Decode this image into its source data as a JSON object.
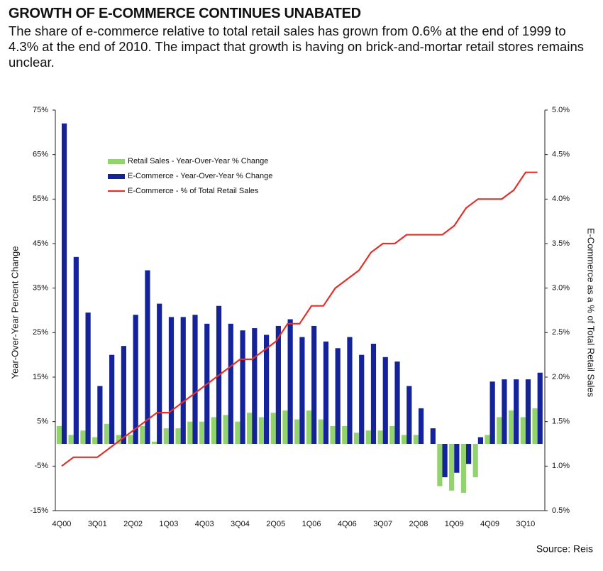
{
  "chart_data": {
    "type": "bar-line",
    "title": "GROWTH OF E-COMMERCE CONTINUES UNABATED",
    "subtitle": "The share of e-commerce relative to total retail sales has grown from 0.6% at the end of 1999 to 4.3% at the end of 2010. The impact that growth is having on brick-and-mortar retail stores remains unclear.",
    "y_label": "Year-Over-Year Percent Change",
    "y2_label": "E-Commerce as a % of Total Retail Sales",
    "source": "Source: Reis",
    "categories": [
      "4Q00",
      null,
      null,
      "3Q01",
      null,
      null,
      "2Q02",
      null,
      null,
      "1Q03",
      null,
      null,
      "4Q03",
      null,
      null,
      "3Q04",
      null,
      null,
      "2Q05",
      null,
      null,
      "1Q06",
      null,
      null,
      "4Q06",
      null,
      null,
      "3Q07",
      null,
      null,
      "2Q08",
      null,
      null,
      "1Q09",
      null,
      null,
      "4Q09",
      null,
      null,
      "3Q10",
      null
    ],
    "series": [
      {
        "name": "Retail Sales - Year-Over-Year % Change",
        "type": "bar",
        "color": "#92d36e",
        "values": [
          4,
          2,
          3,
          1.5,
          4.5,
          2,
          2,
          4,
          0.5,
          3.5,
          3.5,
          5,
          5,
          6,
          6.5,
          5,
          7,
          6,
          7,
          7.5,
          5.5,
          7.5,
          5.5,
          4,
          4,
          2.5,
          3,
          3,
          4,
          2,
          2,
          0,
          -9.5,
          -10.5,
          -11,
          -7.5,
          2,
          6,
          7.5,
          6,
          8
        ]
      },
      {
        "name": "E-Commerce - Year-Over-Year % Change",
        "type": "bar",
        "color": "#15239a",
        "values": [
          72,
          42,
          29.5,
          13,
          20,
          22,
          29,
          39,
          31.5,
          28.5,
          28.5,
          29,
          27,
          31,
          27,
          25.5,
          26,
          24.5,
          26.5,
          28,
          24,
          26.5,
          23,
          21.5,
          24,
          20,
          22.5,
          19.5,
          18.5,
          13,
          8,
          3.5,
          -7.5,
          -6.5,
          -4.5,
          1.5,
          14,
          14.5,
          14.5,
          14.5,
          16
        ]
      },
      {
        "name": "E-Commerce - % of Total Retail Sales",
        "type": "line",
        "axis": "y2",
        "color": "#e2302a",
        "values": [
          1.0,
          1.1,
          1.1,
          1.1,
          1.2,
          1.3,
          1.4,
          1.5,
          1.6,
          1.6,
          1.7,
          1.8,
          1.9,
          2.0,
          2.1,
          2.2,
          2.2,
          2.3,
          2.4,
          2.6,
          2.6,
          2.8,
          2.8,
          3.0,
          3.1,
          3.2,
          3.4,
          3.5,
          3.5,
          3.6,
          3.6,
          3.6,
          3.6,
          3.7,
          3.9,
          4.0,
          4.0,
          4.0,
          4.1,
          4.3,
          4.3
        ]
      }
    ],
    "ylim": [
      -15,
      75
    ],
    "yticks": [
      {
        "value": -15,
        "label": "-15%"
      },
      {
        "value": -5,
        "label": "-5%"
      },
      {
        "value": 5,
        "label": "5%"
      },
      {
        "value": 15,
        "label": "15%"
      },
      {
        "value": 25,
        "label": "25%"
      },
      {
        "value": 35,
        "label": "35%"
      },
      {
        "value": 45,
        "label": "45%"
      },
      {
        "value": 55,
        "label": "55%"
      },
      {
        "value": 65,
        "label": "65%"
      },
      {
        "value": 75,
        "label": "75%"
      }
    ],
    "y2lim": [
      0.5,
      5.0
    ],
    "y2ticks": [
      {
        "value": 0.5,
        "label": "0.5%"
      },
      {
        "value": 1.0,
        "label": "1.0%"
      },
      {
        "value": 1.5,
        "label": "1.5%"
      },
      {
        "value": 2.0,
        "label": "2.0%"
      },
      {
        "value": 2.5,
        "label": "2.5%"
      },
      {
        "value": 3.0,
        "label": "3.0%"
      },
      {
        "value": 3.5,
        "label": "3.5%"
      },
      {
        "value": 4.0,
        "label": "4.0%"
      },
      {
        "value": 4.5,
        "label": "4.5%"
      },
      {
        "value": 5.0,
        "label": "5.0%"
      }
    ],
    "legend": "upper left",
    "grid": false
  }
}
